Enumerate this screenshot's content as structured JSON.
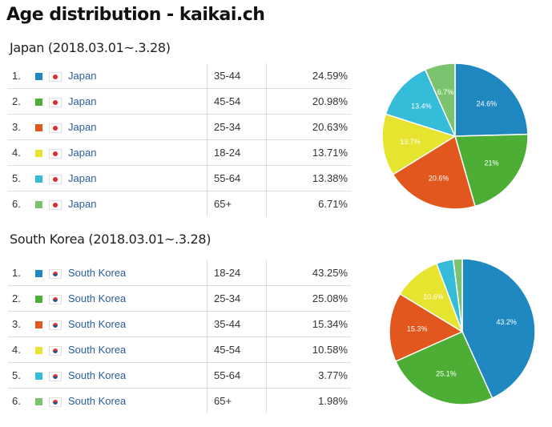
{
  "title": "Age distribution - kaikai.ch",
  "colors": [
    "#1f88c1",
    "#4cae35",
    "#e2571e",
    "#e6e42f",
    "#34bcd9",
    "#7cc36f"
  ],
  "chart_data": [
    {
      "type": "pie",
      "title": "Japan (2018.03.01~.3.28)",
      "country": "Japan",
      "flag": "jp",
      "rows": [
        {
          "rank": "1.",
          "age": "35-44",
          "pct": "24.59%",
          "value": 24.59,
          "label": "24.6%"
        },
        {
          "rank": "2.",
          "age": "45-54",
          "pct": "20.98%",
          "value": 20.98,
          "label": "21%"
        },
        {
          "rank": "3.",
          "age": "25-34",
          "pct": "20.63%",
          "value": 20.63,
          "label": "20.6%"
        },
        {
          "rank": "4.",
          "age": "18-24",
          "pct": "13.71%",
          "value": 13.71,
          "label": "13.7%"
        },
        {
          "rank": "5.",
          "age": "55-64",
          "pct": "13.38%",
          "value": 13.38,
          "label": "13.4%"
        },
        {
          "rank": "6.",
          "age": "65+",
          "pct": "6.71%",
          "value": 6.71,
          "label": "6.7%"
        }
      ]
    },
    {
      "type": "pie",
      "title": "South Korea (2018.03.01~.3.28)",
      "country": "South Korea",
      "flag": "kr",
      "rows": [
        {
          "rank": "1.",
          "age": "18-24",
          "pct": "43.25%",
          "value": 43.25,
          "label": "43.2%"
        },
        {
          "rank": "2.",
          "age": "25-34",
          "pct": "25.08%",
          "value": 25.08,
          "label": "25.1%"
        },
        {
          "rank": "3.",
          "age": "35-44",
          "pct": "15.34%",
          "value": 15.34,
          "label": "15.3%"
        },
        {
          "rank": "4.",
          "age": "45-54",
          "pct": "10.58%",
          "value": 10.58,
          "label": "10.6%"
        },
        {
          "rank": "5.",
          "age": "55-64",
          "pct": "3.77%",
          "value": 3.77,
          "label": ""
        },
        {
          "rank": "6.",
          "age": "65+",
          "pct": "1.98%",
          "value": 1.98,
          "label": ""
        }
      ]
    }
  ]
}
